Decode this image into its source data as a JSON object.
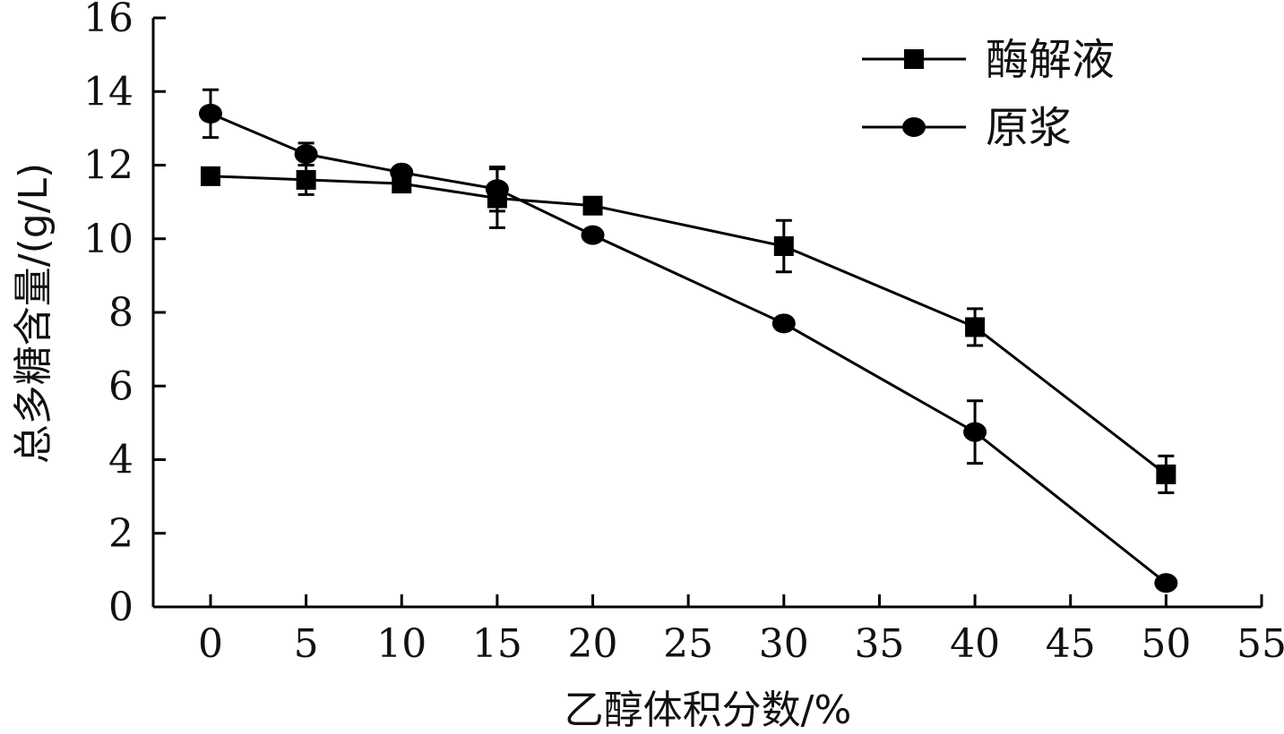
{
  "chart_data": {
    "type": "line",
    "xlabel": "乙醇体积分数/%",
    "ylabel": "总多糖含量/(g/L)",
    "xlim": [
      -3,
      55
    ],
    "ylim": [
      0,
      16
    ],
    "x_ticks": [
      "0",
      "5",
      "10",
      "15",
      "20",
      "25",
      "30",
      "35",
      "40",
      "45",
      "50",
      "55"
    ],
    "y_ticks": [
      "0",
      "2",
      "4",
      "6",
      "8",
      "10",
      "12",
      "14",
      "16"
    ],
    "legend_position": "top-right",
    "grid": false,
    "series": [
      {
        "name": "酶解液",
        "marker": "square",
        "color": "#000000",
        "x": [
          0,
          5,
          10,
          15,
          20,
          30,
          40,
          50
        ],
        "y": [
          11.7,
          11.6,
          11.5,
          11.1,
          10.9,
          9.8,
          7.6,
          3.6
        ],
        "error": [
          0.0,
          0.4,
          0.0,
          0.8,
          0.0,
          0.7,
          0.5,
          0.5
        ]
      },
      {
        "name": "原浆",
        "marker": "circle",
        "color": "#000000",
        "x": [
          0,
          5,
          10,
          15,
          20,
          30,
          40,
          50
        ],
        "y": [
          13.4,
          12.3,
          11.8,
          11.35,
          10.1,
          7.7,
          4.75,
          0.65
        ],
        "error": [
          0.65,
          0.3,
          0.0,
          0.6,
          0.0,
          0.0,
          0.85,
          0.0
        ]
      }
    ]
  }
}
